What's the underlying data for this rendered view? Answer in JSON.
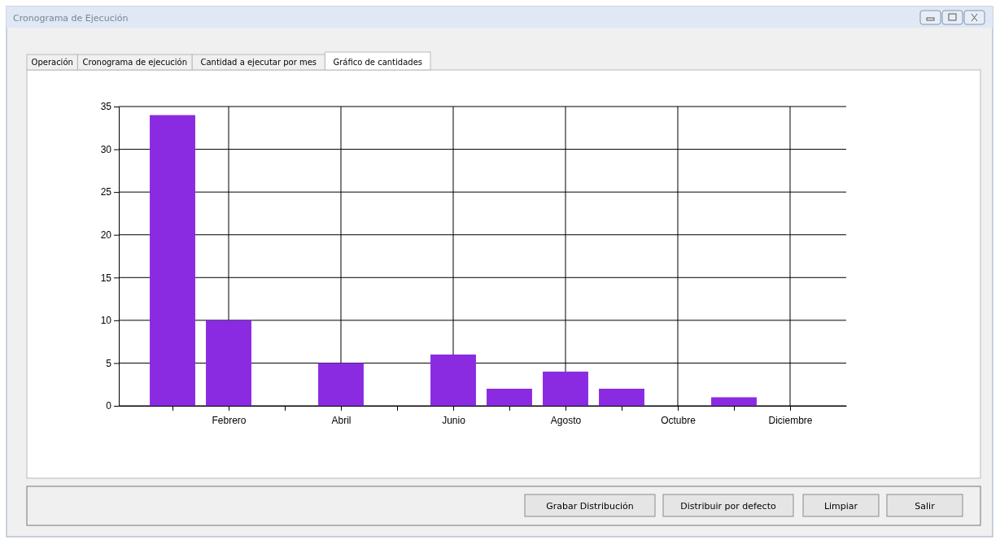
{
  "chart_data": {
    "type": "bar",
    "title": "Cronograma de Ejecución",
    "categories": [
      null,
      "Febrero",
      null,
      "Abril",
      null,
      "Junio",
      null,
      "Agosto",
      null,
      "Octubre",
      null,
      "Diciembre"
    ],
    "values": [
      34,
      10,
      0,
      5,
      0,
      6,
      2,
      4,
      2,
      0,
      1,
      0
    ],
    "color": "#8a2be2",
    "ylim": [
      0,
      35
    ],
    "yticks": [
      0,
      5,
      10,
      15,
      20,
      25,
      30,
      35
    ],
    "grid": true,
    "annotations": [
      "Operación",
      "Cronograma de ejecución",
      "Cantidad a ejecutar por mes",
      "Gráfico de cantidades",
      "Grabar Distribución",
      "Distribuir por defecto",
      "Limpiar",
      "Salir"
    ]
  }
}
